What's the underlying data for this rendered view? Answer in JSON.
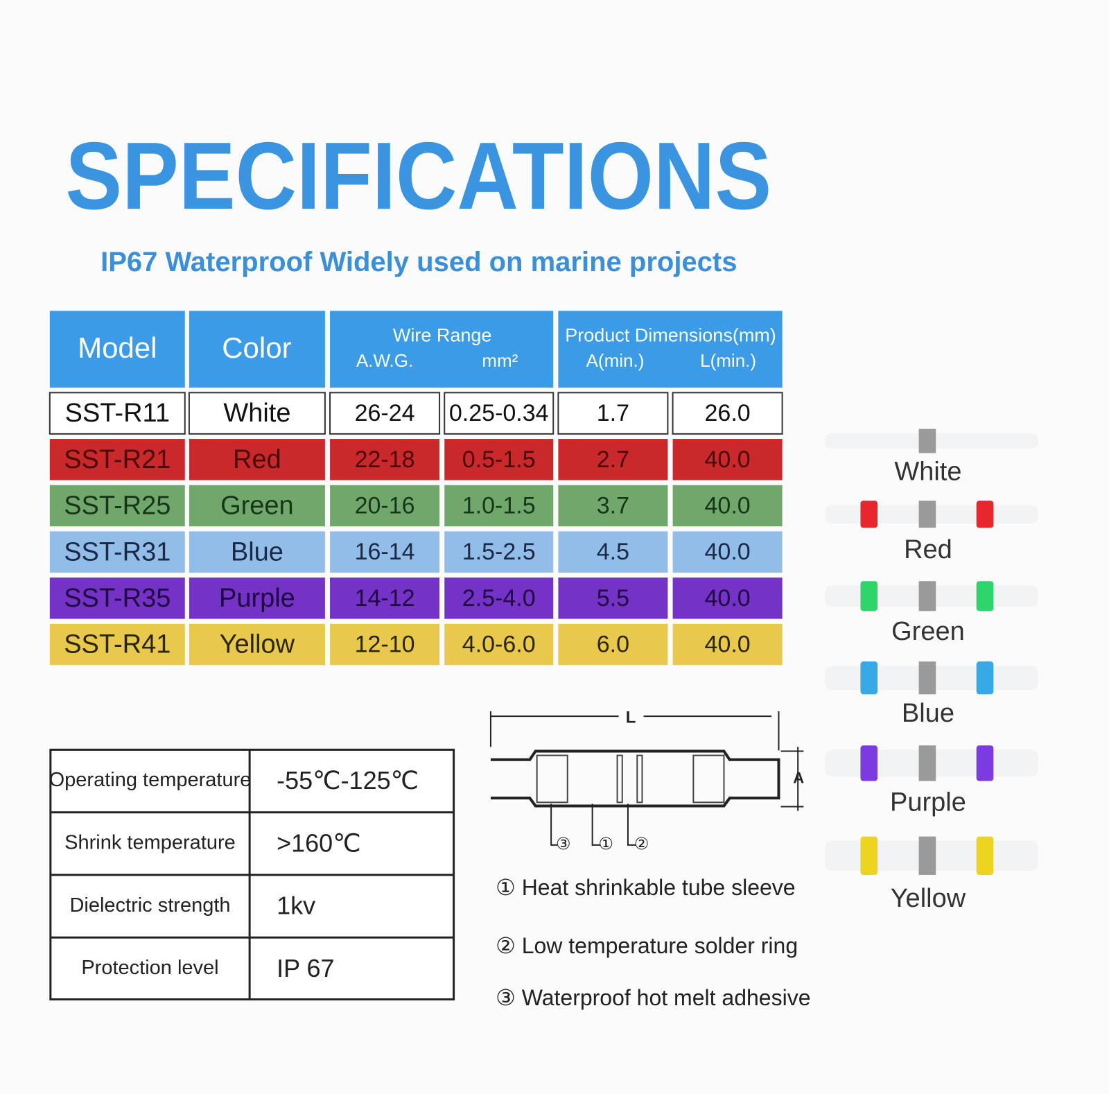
{
  "title": "SPECIFICATIONS",
  "subtitle": "IP67 Waterproof Widely used on marine projects",
  "spec_table": {
    "headers": {
      "model": "Model",
      "color": "Color",
      "wire_range": "Wire Range",
      "awg": "A.W.G.",
      "mm2": "mm²",
      "dimensions": "Product Dimensions(mm)",
      "a_min": "A(min.)",
      "l_min": "L(min.)"
    },
    "rows": [
      [
        "SST-R11",
        "White",
        "26-24",
        "0.25-0.34",
        "1.7",
        "26.0"
      ],
      [
        "SST-R21",
        "Red",
        "22-18",
        "0.5-1.5",
        "2.7",
        "40.0"
      ],
      [
        "SST-R25",
        "Green",
        "20-16",
        "1.0-1.5",
        "3.7",
        "40.0"
      ],
      [
        "SST-R31",
        "Blue",
        "16-14",
        "1.5-2.5",
        "4.5",
        "40.0"
      ],
      [
        "SST-R35",
        "Purple",
        "14-12",
        "2.5-4.0",
        "5.5",
        "40.0"
      ],
      [
        "SST-R41",
        "Yellow",
        "12-10",
        "4.0-6.0",
        "6.0",
        "40.0"
      ]
    ]
  },
  "properties": {
    "rows": [
      [
        "Operating temperature",
        "-55℃-125℃"
      ],
      [
        "Shrink temperature",
        ">160℃"
      ],
      [
        "Dielectric strength",
        "1kv"
      ],
      [
        "Protection level",
        "IP 67"
      ]
    ]
  },
  "diagram": {
    "length_label": "L",
    "diameter_label": "A",
    "callouts": [
      "③",
      "①",
      "②"
    ],
    "legend": [
      "① Heat shrinkable tube sleeve",
      "② Low temperature solder ring",
      "③ Waterproof hot melt adhesive"
    ]
  },
  "swatches": [
    "White",
    "Red",
    "Green",
    "Blue",
    "Purple",
    "Yellow"
  ]
}
